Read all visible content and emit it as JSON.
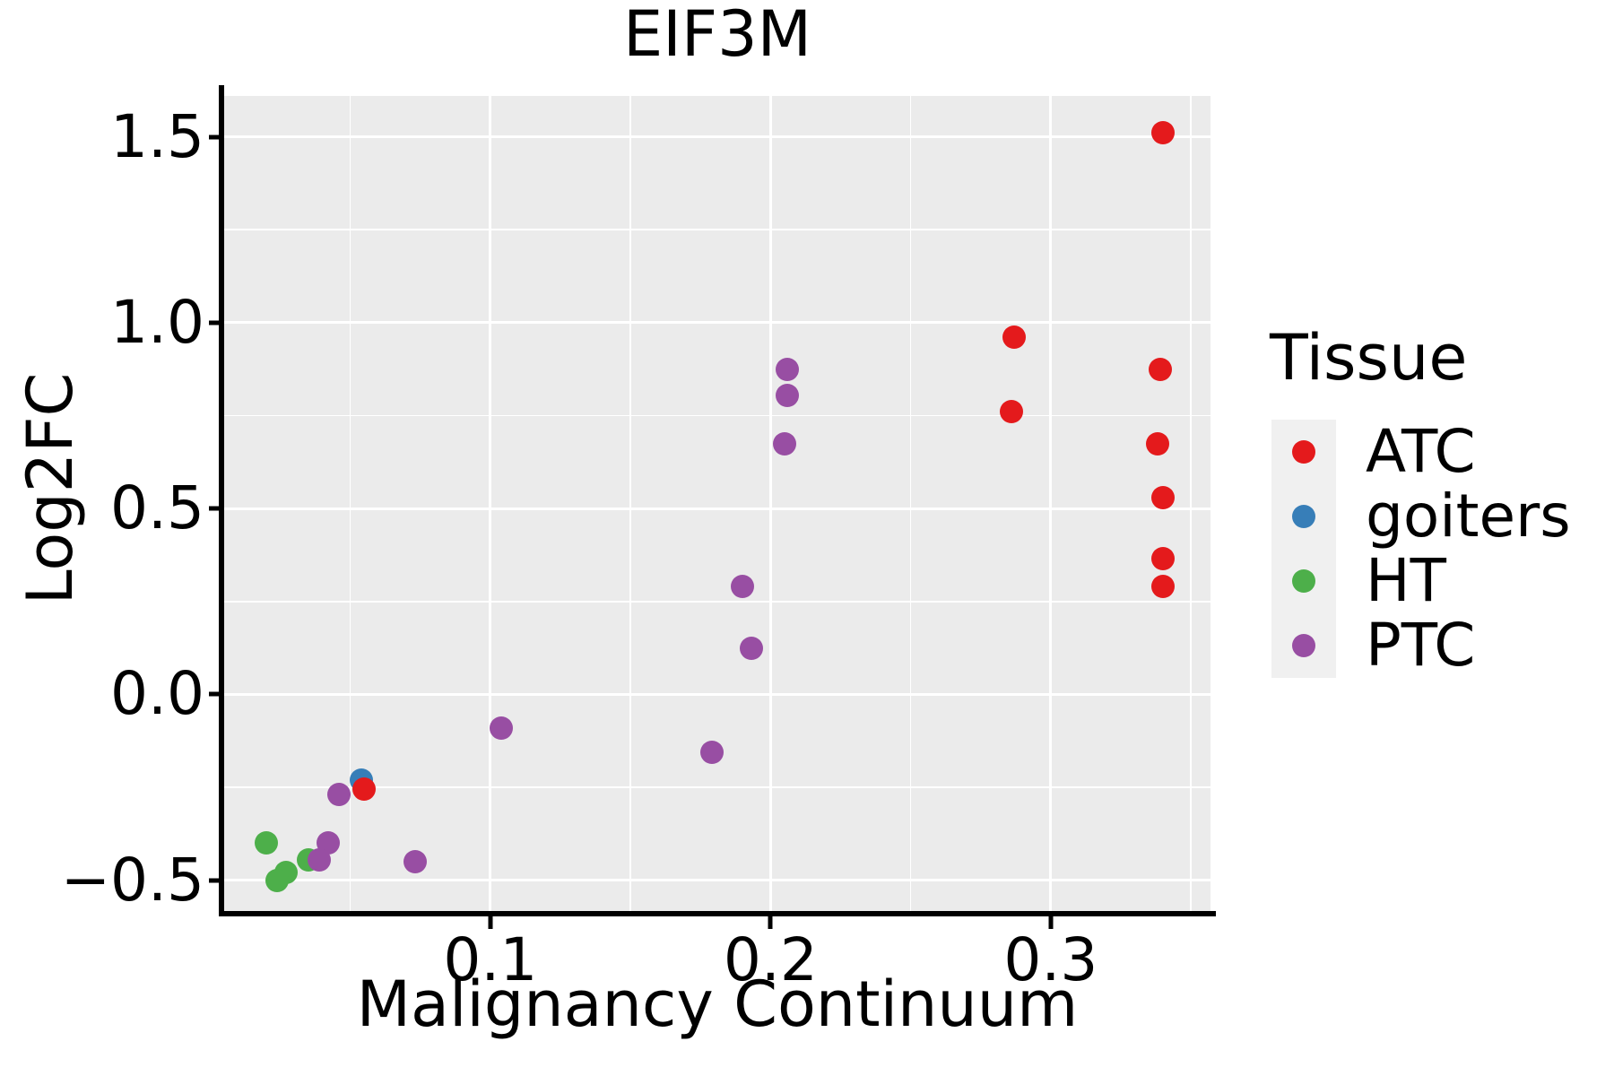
{
  "title": "EIF3M",
  "axes": {
    "x": {
      "label": "Malignancy Continuum",
      "ticks": [
        0.1,
        0.2,
        0.3
      ],
      "tick_labels": [
        "0.1",
        "0.2",
        "0.3"
      ],
      "minor_ticks": [
        0.05,
        0.15,
        0.25,
        0.35
      ],
      "range": [
        0.005,
        0.357
      ]
    },
    "y": {
      "label": "Log2FC",
      "ticks": [
        -0.5,
        0.0,
        0.5,
        1.0,
        1.5
      ],
      "tick_labels": [
        "−0.5",
        "0.0",
        "0.5",
        "1.0",
        "1.5"
      ],
      "minor_ticks": [
        -0.25,
        0.25,
        0.75,
        1.25
      ],
      "range": [
        -0.59,
        1.61
      ]
    }
  },
  "legend": {
    "title": "Tissue",
    "entries": [
      {
        "label": "ATC",
        "color": "#E41A1C"
      },
      {
        "label": "goiters",
        "color": "#377EB8"
      },
      {
        "label": "HT",
        "color": "#4DAF4A"
      },
      {
        "label": "PTC",
        "color": "#984EA3"
      }
    ]
  },
  "colors": {
    "panel_background": "#EBEBEB",
    "gridline": "#FFFFFF",
    "axis": "#000000",
    "legend_key_background": "#F0F0F0"
  },
  "chart_data": {
    "type": "scatter",
    "title": "EIF3M",
    "xlabel": "Malignancy Continuum",
    "ylabel": "Log2FC",
    "xlim": [
      0.005,
      0.357
    ],
    "ylim": [
      -0.59,
      1.61
    ],
    "grid": "white major and minor gridlines on gray panel",
    "legend_position": "right",
    "legend_title": "Tissue",
    "series": [
      {
        "name": "goiters",
        "color": "#377EB8",
        "points": [
          [
            0.054,
            -0.23
          ]
        ]
      },
      {
        "name": "HT",
        "color": "#4DAF4A",
        "points": [
          [
            0.02,
            -0.4
          ],
          [
            0.035,
            -0.445
          ],
          [
            0.027,
            -0.48
          ],
          [
            0.024,
            -0.5
          ]
        ]
      },
      {
        "name": "ATC",
        "color": "#E41A1C",
        "points": [
          [
            0.34,
            1.51
          ],
          [
            0.287,
            0.96
          ],
          [
            0.286,
            0.76
          ],
          [
            0.339,
            0.875
          ],
          [
            0.338,
            0.675
          ],
          [
            0.34,
            0.53
          ],
          [
            0.34,
            0.365
          ],
          [
            0.34,
            0.29
          ],
          [
            0.055,
            -0.255
          ]
        ]
      },
      {
        "name": "PTC",
        "color": "#984EA3",
        "points": [
          [
            0.046,
            -0.27
          ],
          [
            0.042,
            -0.4
          ],
          [
            0.039,
            -0.445
          ],
          [
            0.073,
            -0.45
          ],
          [
            0.104,
            -0.09
          ],
          [
            0.179,
            -0.155
          ],
          [
            0.206,
            0.875
          ],
          [
            0.206,
            0.805
          ],
          [
            0.205,
            0.675
          ],
          [
            0.19,
            0.29
          ],
          [
            0.193,
            0.125
          ]
        ]
      }
    ]
  }
}
